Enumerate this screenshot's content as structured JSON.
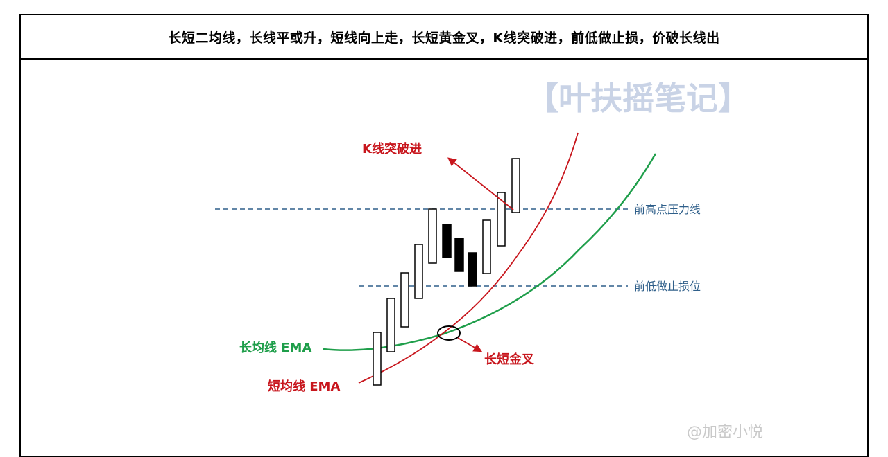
{
  "title": "长短二均线，长线平或升，短线向上走，长短黄金叉，K线突破进，前低做止损，价破长线出",
  "brand_stamp": "【叶扶摇笔记】",
  "labels": {
    "k_breakout": "K线突破进",
    "resistance": "前高点压力线",
    "stop_loss": "前低做止损位",
    "long_ema": "长均线 EMA",
    "short_ema": "短均线 EMA",
    "golden_cross": "长短金叉"
  },
  "corner_watermark": "@加密小悦",
  "colors": {
    "red": "#c8161d",
    "green": "#1e9e4a",
    "blue_dash": "#2f5f8a",
    "stamp": "#c9d3e6",
    "label_blue": "#2f5f8a"
  },
  "candles": [
    {
      "dir": "up"
    },
    {
      "dir": "up"
    },
    {
      "dir": "up"
    },
    {
      "dir": "up"
    },
    {
      "dir": "up"
    },
    {
      "dir": "down"
    },
    {
      "dir": "down"
    },
    {
      "dir": "down"
    },
    {
      "dir": "up"
    },
    {
      "dir": "up"
    },
    {
      "dir": "up"
    }
  ]
}
